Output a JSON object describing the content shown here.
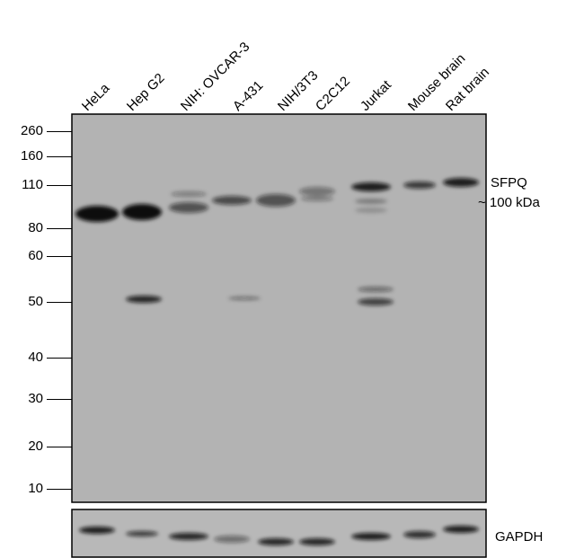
{
  "lanes": [
    "HeLa",
    "Hep G2",
    "NIH: OVCAR-3",
    "A-431",
    "NIH/3T3",
    "C2C12",
    "Jurkat",
    "Mouse brain",
    "Rat brain"
  ],
  "markers": [
    "260",
    "160",
    "110",
    "80",
    "60",
    "50",
    "40",
    "30",
    "20",
    "10"
  ],
  "target_label": "SFPQ",
  "size_label": "~ 100 kDa",
  "loading_control_label": "GAPDH",
  "colors": {
    "membrane": "#b4b4b4",
    "band": "#111111"
  }
}
